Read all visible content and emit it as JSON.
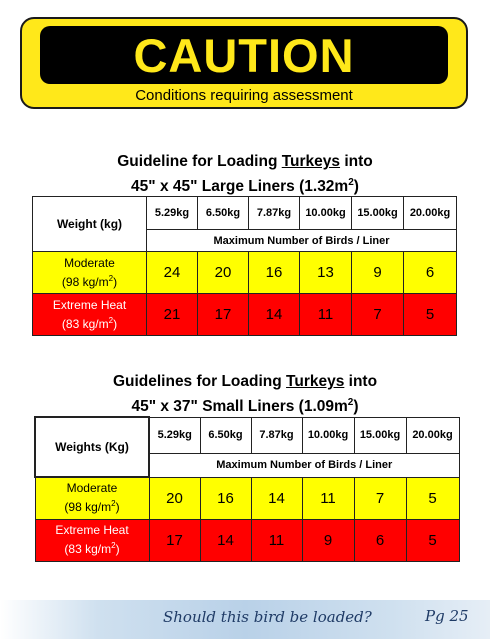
{
  "caution": {
    "title": "CAUTION",
    "subtitle": "Conditions requiring assessment"
  },
  "table1": {
    "heading_pre": "Guideline for Loading ",
    "heading_animal": "Turkeys",
    "heading_post": " into",
    "heading_line2": "45\" x 45\" Large Liners (1.32m",
    "heading_sup": "2",
    "heading_close": ")",
    "weight_label": "Weight (kg)",
    "weights": [
      "5.29kg",
      "6.50kg",
      "7.87kg",
      "10.00kg",
      "15.00kg",
      "20.00kg"
    ],
    "subheader": "Maximum Number of Birds / Liner",
    "rows": [
      {
        "label": "Moderate",
        "density": "(98 kg/m",
        "sup": "2",
        "close": ")",
        "values": [
          "24",
          "20",
          "16",
          "13",
          "9",
          "6"
        ]
      },
      {
        "label": "Extreme Heat",
        "density": "(83 kg/m",
        "sup": "2",
        "close": ")",
        "values": [
          "21",
          "17",
          "14",
          "11",
          "7",
          "5"
        ]
      }
    ]
  },
  "table2": {
    "heading_pre": "Guidelines for Loading ",
    "heading_animal": "Turkeys",
    "heading_post": " into",
    "heading_line2": "45\" x 37\" Small Liners (1.09m",
    "heading_sup": "2",
    "heading_close": ")",
    "weight_label": "Weights (Kg)",
    "weights": [
      "5.29kg",
      "6.50kg",
      "7.87kg",
      "10.00kg",
      "15.00kg",
      "20.00kg"
    ],
    "subheader": "Maximum Number of Birds / Liner",
    "rows": [
      {
        "label": "Moderate",
        "density": "(98 kg/m",
        "sup": "2",
        "close": ")",
        "values": [
          "20",
          "16",
          "14",
          "11",
          "7",
          "5"
        ]
      },
      {
        "label": "Extreme Heat",
        "density": "(83 kg/m",
        "sup": "2",
        "close": ")",
        "values": [
          "17",
          "14",
          "11",
          "9",
          "6",
          "5"
        ]
      }
    ]
  },
  "footer": {
    "text": "Should this bird be loaded?",
    "page": "Pg 25"
  },
  "colors": {
    "caution_yellow": "#FFE81A",
    "moderate": "#FFFF00",
    "extreme": "#FF0000",
    "footer_text": "#1f3b66"
  }
}
